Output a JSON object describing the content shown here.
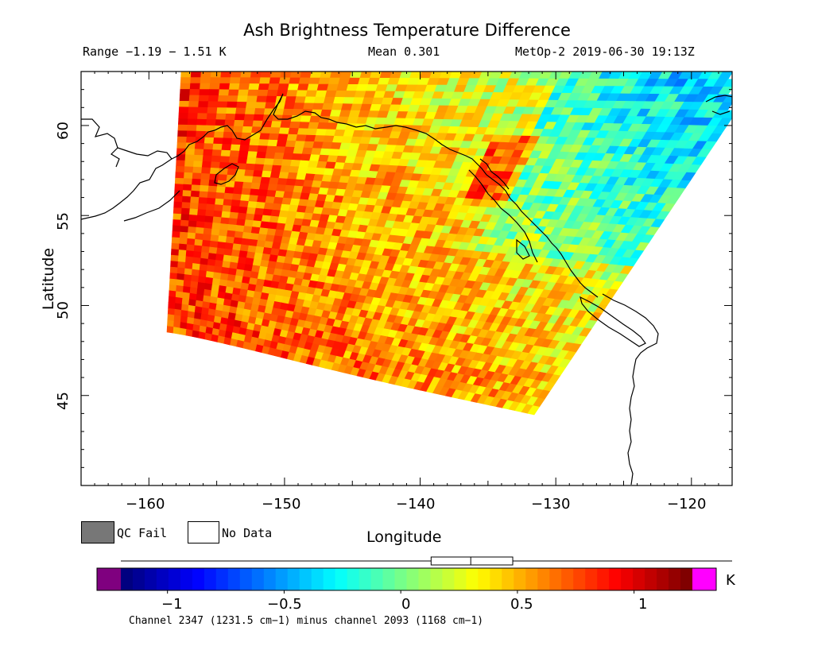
{
  "header": {
    "title": "Ash Brightness Temperature Difference",
    "range": "Range −1.19 − 1.51 K",
    "mean": "Mean 0.301",
    "satellite_time": "MetOp-2 2019-06-30 19:13Z"
  },
  "axes": {
    "ylabel": "Latitude",
    "xlabel": "Longitude",
    "lat_ticks": [
      "45",
      "50",
      "55",
      "60"
    ],
    "lon_ticks": [
      "−160",
      "−150",
      "−140",
      "−130",
      "−120"
    ],
    "lon_range": [
      -165,
      -117
    ],
    "lat_range": [
      40,
      63
    ]
  },
  "legend": {
    "qc_fail": "QC Fail",
    "no_data": "No Data",
    "qc_fail_color": "#777777",
    "no_data_color": "#ffffff"
  },
  "colorbar": {
    "unit": "K",
    "ticks": [
      "−1",
      "−0.5",
      "0",
      "0.5",
      "1"
    ],
    "tick_values": [
      -1,
      -0.5,
      0,
      0.5,
      1
    ],
    "min": -1.2,
    "max": 1.25,
    "under_color": "#7f007f",
    "over_color": "#ff00ff",
    "box_q1": 0.13,
    "box_median": 0.3,
    "box_q3": 0.48
  },
  "footer": {
    "channel_text": "Channel 2347 (1231.5 cm−1) minus channel 2093 (1168 cm−1)"
  }
}
